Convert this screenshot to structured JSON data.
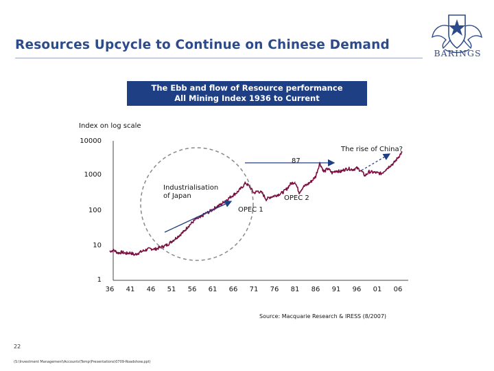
{
  "slide": {
    "title": "Resources Upcycle to Continue on Chinese Demand",
    "logo_text": "BARINGS",
    "banner_line1": "The Ebb and flow of Resource performance",
    "banner_line2": "All Mining Index 1936 to Current",
    "source": "Source: Macquarie Research & IRESS (8/2007)",
    "page_number": "22",
    "file_path": "(S:\\Investment Management\\Accounts\\Temp\\Presentations\\0709-Roadshow.ppt)"
  },
  "colors": {
    "title": "#2d4a8a",
    "banner_bg": "#1f3f84",
    "series": "#7a1040",
    "arrow": "#1f3f84"
  },
  "chart_data": {
    "type": "line",
    "title": "The Ebb and flow of Resource performance — All Mining Index 1936 to Current",
    "ylabel": "Index on log scale",
    "xlabel": "",
    "yscale": "log",
    "ylim": [
      1,
      10000
    ],
    "xlim": [
      1934,
      2008
    ],
    "ytick_labels": [
      "10000",
      "1000",
      "100",
      "10",
      "1"
    ],
    "xtick_labels": [
      "36",
      "41",
      "46",
      "51",
      "56",
      "61",
      "66",
      "71",
      "76",
      "81",
      "86",
      "91",
      "96",
      "01",
      "06"
    ],
    "grid": false,
    "series": [
      {
        "name": "All Mining Index",
        "points": [
          [
            1936,
            6.8
          ],
          [
            1937,
            7.3
          ],
          [
            1938,
            6.1
          ],
          [
            1939,
            6.4
          ],
          [
            1940,
            5.9
          ],
          [
            1941,
            6.2
          ],
          [
            1942,
            5.4
          ],
          [
            1943,
            6.1
          ],
          [
            1944,
            6.9
          ],
          [
            1945,
            7.6
          ],
          [
            1946,
            8.1
          ],
          [
            1947,
            7.8
          ],
          [
            1948,
            8.6
          ],
          [
            1949,
            9.4
          ],
          [
            1950,
            10.5
          ],
          [
            1951,
            13.0
          ],
          [
            1952,
            16.0
          ],
          [
            1953,
            20.0
          ],
          [
            1954,
            25.0
          ],
          [
            1955,
            35.0
          ],
          [
            1956,
            45.0
          ],
          [
            1957,
            58.0
          ],
          [
            1958,
            62.0
          ],
          [
            1959,
            80.0
          ],
          [
            1960,
            90.0
          ],
          [
            1961,
            108.0
          ],
          [
            1962,
            130.0
          ],
          [
            1963,
            150.0
          ],
          [
            1964,
            190.0
          ],
          [
            1965,
            230.0
          ],
          [
            1966,
            280.0
          ],
          [
            1967,
            340.0
          ],
          [
            1968,
            450.0
          ],
          [
            1969,
            620.0
          ],
          [
            1970,
            480.0
          ],
          [
            1971,
            320.0
          ],
          [
            1972,
            360.0
          ],
          [
            1973,
            320.0
          ],
          [
            1974,
            210.0
          ],
          [
            1975,
            245.0
          ],
          [
            1976,
            265.0
          ],
          [
            1977,
            290.0
          ],
          [
            1978,
            330.0
          ],
          [
            1979,
            420.0
          ],
          [
            1980,
            600.0
          ],
          [
            1981,
            660.0
          ],
          [
            1982,
            330.0
          ],
          [
            1983,
            480.0
          ],
          [
            1984,
            560.0
          ],
          [
            1985,
            700.0
          ],
          [
            1986,
            950.0
          ],
          [
            1987,
            2300.0
          ],
          [
            1988,
            1300.0
          ],
          [
            1989,
            1600.0
          ],
          [
            1990,
            1200.0
          ],
          [
            1991,
            1400.0
          ],
          [
            1992,
            1300.0
          ],
          [
            1993,
            1500.0
          ],
          [
            1994,
            1600.0
          ],
          [
            1995,
            1500.0
          ],
          [
            1996,
            1650.0
          ],
          [
            1997,
            1400.0
          ],
          [
            1998,
            1000.0
          ],
          [
            1999,
            1300.0
          ],
          [
            2000,
            1250.0
          ],
          [
            2001,
            1200.0
          ],
          [
            2002,
            1150.0
          ],
          [
            2003,
            1500.0
          ],
          [
            2004,
            1900.0
          ],
          [
            2005,
            2300.0
          ],
          [
            2006,
            3300.0
          ],
          [
            2007,
            4800.0
          ]
        ]
      }
    ],
    "annotations": [
      "The rise of China?",
      "87",
      "Industrialisation of Japan",
      "OPEC 2",
      "OPEC 1"
    ]
  },
  "labels": {
    "y_unit": "Index on log scale",
    "rise_of_china": "The rise of China?",
    "peak_87": "87",
    "japan_line1": "Industrialisation",
    "japan_line2": "of Japan",
    "opec1": "OPEC 1",
    "opec2": "OPEC 2"
  }
}
